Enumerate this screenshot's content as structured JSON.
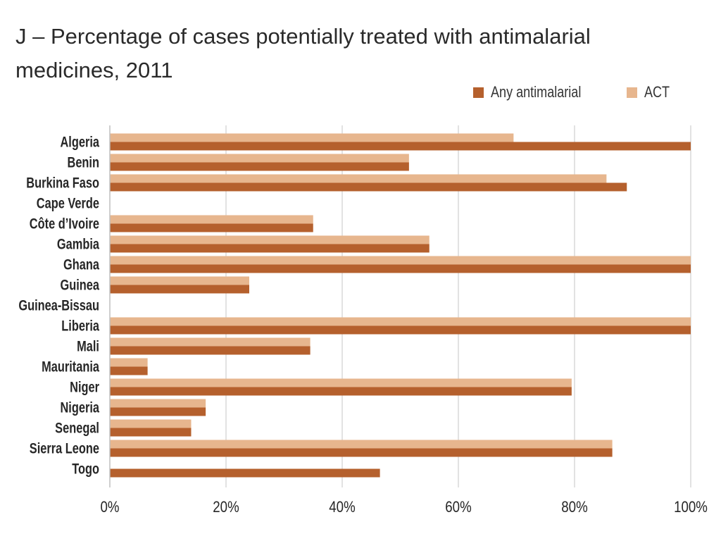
{
  "title": "J – Percentage of cases potentially treated with antimalarial medicines, 2011",
  "legend": [
    {
      "label": "Any antimalarial",
      "color": "#b5602d"
    },
    {
      "label": "ACT",
      "color": "#e7b68e"
    }
  ],
  "chart_data": {
    "type": "bar",
    "orientation": "horizontal",
    "title": "J – Percentage of cases potentially treated with antimalarial medicines, 2011",
    "xlabel": "",
    "ylabel": "",
    "xlim": [
      0,
      100
    ],
    "x_ticks": [
      "0%",
      "20%",
      "40%",
      "60%",
      "80%",
      "100%"
    ],
    "grid": true,
    "legend_position": "top-right",
    "categories": [
      "Algeria",
      "Benin",
      "Burkina Faso",
      "Cape Verde",
      "Côte d’Ivoire",
      "Gambia",
      "Ghana",
      "Guinea",
      "Guinea-Bissau",
      "Liberia",
      "Mali",
      "Mauritania",
      "Niger",
      "Nigeria",
      "Senegal",
      "Sierra Leone",
      "Togo"
    ],
    "series": [
      {
        "name": "ACT",
        "color": "#e7b68e",
        "values": [
          69.5,
          51.5,
          85.5,
          null,
          35,
          55,
          100,
          24,
          null,
          100,
          34.5,
          6.5,
          79.5,
          16.5,
          14,
          86.5,
          null
        ]
      },
      {
        "name": "Any antimalarial",
        "color": "#b5602d",
        "values": [
          100,
          51.5,
          89,
          null,
          35,
          55,
          100,
          24,
          null,
          100,
          34.5,
          6.5,
          79.5,
          16.5,
          14,
          86.5,
          46.5
        ]
      }
    ]
  }
}
